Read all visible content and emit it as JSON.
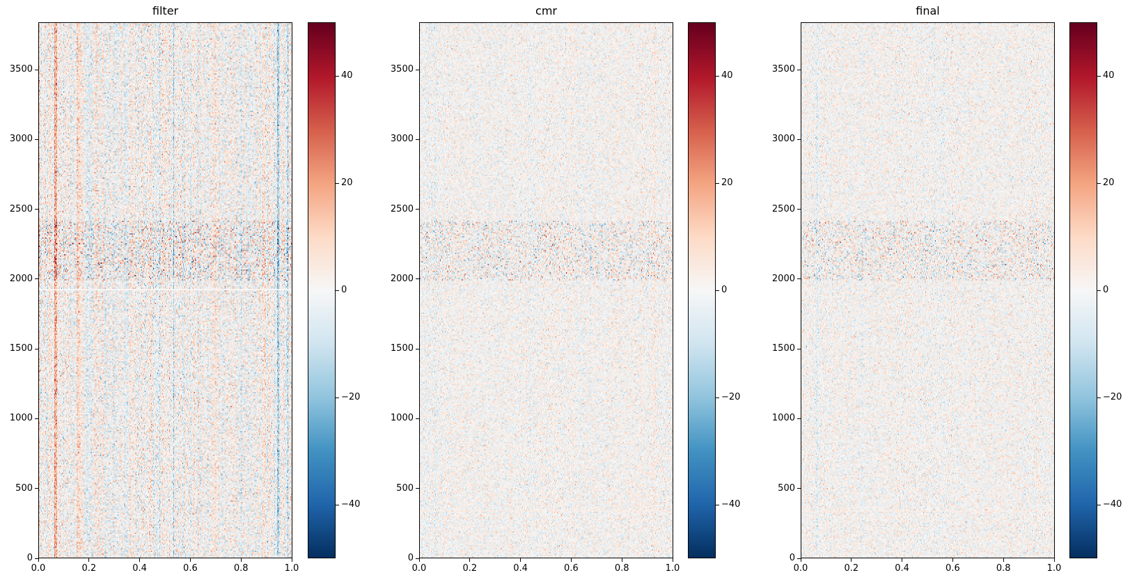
{
  "chart_data": [
    {
      "type": "heatmap",
      "title": "filter",
      "xlim": [
        0.0,
        1.0
      ],
      "ylim": [
        0,
        3840
      ],
      "xticks": [
        "0.0",
        "0.2",
        "0.4",
        "0.6",
        "0.8",
        "1.0"
      ],
      "yticks": [
        "0",
        "500",
        "1000",
        "1500",
        "2000",
        "2500",
        "3000",
        "3500"
      ],
      "colormap": "RdBu_r",
      "vmin": -50,
      "vmax": 50,
      "colorbar_ticks": [
        "−40",
        "−20",
        "0",
        "20",
        "40"
      ]
    },
    {
      "type": "heatmap",
      "title": "cmr",
      "xlim": [
        0.0,
        1.0
      ],
      "ylim": [
        0,
        3840
      ],
      "xticks": [
        "0.0",
        "0.2",
        "0.4",
        "0.6",
        "0.8",
        "1.0"
      ],
      "yticks": [
        "0",
        "500",
        "1000",
        "1500",
        "2000",
        "2500",
        "3000",
        "3500"
      ],
      "colormap": "RdBu_r",
      "vmin": -50,
      "vmax": 50,
      "colorbar_ticks": [
        "−40",
        "−20",
        "0",
        "20",
        "40"
      ]
    },
    {
      "type": "heatmap",
      "title": "final",
      "xlim": [
        0.0,
        1.0
      ],
      "ylim": [
        0,
        3840
      ],
      "xticks": [
        "0.0",
        "0.2",
        "0.4",
        "0.6",
        "0.8",
        "1.0"
      ],
      "yticks": [
        "0",
        "500",
        "1000",
        "1500",
        "2000",
        "2500",
        "3000",
        "3500"
      ],
      "colormap": "RdBu_r",
      "vmin": -50,
      "vmax": 50,
      "colorbar_ticks": [
        "−40",
        "−20",
        "0",
        "20",
        "40"
      ]
    }
  ],
  "colors": {
    "colormap_stops": [
      "#053061",
      "#2166ac",
      "#4393c3",
      "#92c5de",
      "#d1e5f0",
      "#f7f7f7",
      "#fddbc7",
      "#f4a582",
      "#d6604d",
      "#b2182b",
      "#67001f"
    ]
  }
}
